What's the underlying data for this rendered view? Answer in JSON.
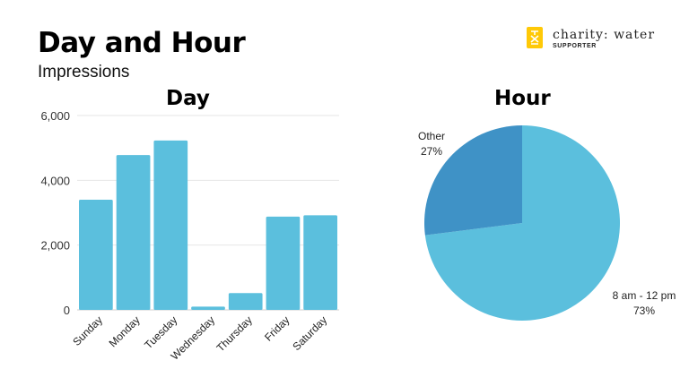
{
  "header": {
    "title": "Day and Hour",
    "subtitle": "Impressions"
  },
  "brand": {
    "name": "charity: water",
    "tagline": "SUPPORTER",
    "color": "#FFC907"
  },
  "colors": {
    "bar": "#5BBFDD",
    "pie_primary": "#5BBFDD",
    "pie_secondary": "#3F92C6",
    "grid": "#e6e6e6"
  },
  "chart_data": [
    {
      "type": "bar",
      "title": "Day",
      "categories": [
        "Sunday",
        "Monday",
        "Tuesday",
        "Wednesday",
        "Thursday",
        "Friday",
        "Saturday"
      ],
      "values": [
        3400,
        4780,
        5230,
        100,
        520,
        2880,
        2920
      ],
      "ylim": [
        0,
        6000
      ],
      "yticks": [
        0,
        2000,
        4000,
        6000
      ],
      "ytick_labels": [
        "0",
        "2,000",
        "4,000",
        "6,000"
      ],
      "grid": true,
      "legend": "none"
    },
    {
      "type": "pie",
      "title": "Hour",
      "slices": [
        {
          "label": "8 am - 12 pm",
          "value": 73,
          "value_label": "73%"
        },
        {
          "label": "Other",
          "value": 27,
          "value_label": "27%"
        }
      ],
      "legend": "none"
    }
  ]
}
